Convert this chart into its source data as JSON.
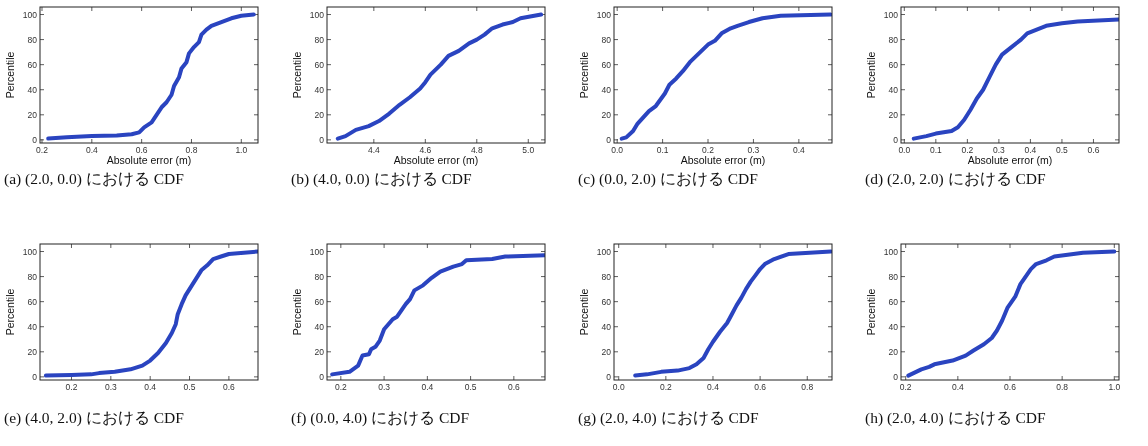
{
  "chart_data": [
    {
      "type": "line",
      "title": "(a) (2.0, 0.0) における CDF",
      "xlabel": "Absolute error (m)",
      "ylabel": "Percentile",
      "xlim": [
        0.192,
        1.067
      ],
      "ylim": [
        -2.5,
        106
      ],
      "xticks": [
        0.2,
        0.4,
        0.6,
        0.8,
        {
          "value": 1,
          "label": "1.0"
        }
      ],
      "yticks": [
        0,
        20,
        40,
        60,
        80,
        100
      ],
      "series": [
        {
          "color": "#2a44c0",
          "x": [
            0.225,
            0.3,
            0.4,
            0.5,
            0.56,
            0.59,
            0.61,
            0.64,
            0.66,
            0.68,
            0.7,
            0.72,
            0.73,
            0.75,
            0.76,
            0.78,
            0.79,
            0.81,
            0.83,
            0.84,
            0.86,
            0.88,
            0.92,
            0.96,
            1.0,
            1.05
          ],
          "values": [
            1,
            2,
            3,
            3.5,
            4.5,
            6,
            10,
            14,
            20,
            26,
            30,
            36,
            43,
            50,
            57,
            62,
            69,
            74,
            78,
            84,
            88,
            91,
            94,
            97,
            99,
            100
          ]
        }
      ]
    },
    {
      "type": "line",
      "title": "(b) (4.0, 0.0) における CDF",
      "xlabel": "Absolute error (m)",
      "ylabel": "Percentile",
      "xlim": [
        4.218,
        5.065
      ],
      "ylim": [
        -2.5,
        106
      ],
      "xticks": [
        4.4,
        4.6,
        4.8,
        {
          "value": 5,
          "label": "5.0"
        }
      ],
      "yticks": [
        0,
        20,
        40,
        60,
        80,
        100
      ],
      "series": [
        {
          "color": "#2a44c0",
          "x": [
            4.26,
            4.29,
            4.33,
            4.38,
            4.42,
            4.46,
            4.5,
            4.54,
            4.58,
            4.6,
            4.62,
            4.66,
            4.69,
            4.73,
            4.77,
            4.8,
            4.83,
            4.86,
            4.9,
            4.94,
            4.97,
            5.05
          ],
          "values": [
            1,
            3,
            8,
            11,
            15,
            21,
            28,
            34,
            41,
            46,
            52,
            60,
            67,
            71,
            77,
            80,
            84,
            89,
            92,
            94,
            97,
            100
          ]
        }
      ]
    },
    {
      "type": "line",
      "title": "(c) (0.0, 2.0) における CDF",
      "xlabel": "Absolute error (m)",
      "ylabel": "Percentile",
      "xlim": [
        -0.007,
        0.473
      ],
      "ylim": [
        -2.5,
        106
      ],
      "xticks": [
        {
          "value": 0,
          "label": "0.0"
        },
        0.1,
        0.2,
        0.3,
        0.4
      ],
      "yticks": [
        0,
        20,
        40,
        60,
        80,
        100
      ],
      "series": [
        {
          "color": "#2a44c0",
          "x": [
            0.01,
            0.02,
            0.035,
            0.045,
            0.06,
            0.07,
            0.085,
            0.095,
            0.105,
            0.115,
            0.13,
            0.145,
            0.16,
            0.18,
            0.2,
            0.215,
            0.23,
            0.25,
            0.265,
            0.29,
            0.32,
            0.36,
            0.47
          ],
          "values": [
            1,
            2,
            7,
            13,
            19,
            23,
            27,
            32,
            37,
            44,
            49,
            55,
            62,
            69,
            76,
            79,
            85,
            89,
            91,
            94,
            97,
            99,
            100
          ]
        }
      ]
    },
    {
      "type": "line",
      "title": "(d) (2.0, 2.0) における CDF",
      "xlabel": "Absolute error (m)",
      "ylabel": "Percentile",
      "xlim": [
        -0.0105,
        0.681
      ],
      "ylim": [
        -2.5,
        106
      ],
      "xticks": [
        {
          "value": 0,
          "label": "0.0"
        },
        0.1,
        0.2,
        0.3,
        0.4,
        0.5,
        0.6
      ],
      "yticks": [
        0,
        20,
        40,
        60,
        80,
        100
      ],
      "series": [
        {
          "color": "#2a44c0",
          "x": [
            0.03,
            0.07,
            0.1,
            0.15,
            0.17,
            0.19,
            0.21,
            0.23,
            0.25,
            0.27,
            0.29,
            0.31,
            0.34,
            0.37,
            0.39,
            0.42,
            0.45,
            0.5,
            0.55,
            0.68
          ],
          "values": [
            1,
            3,
            5,
            7,
            10,
            16,
            24,
            33,
            40,
            50,
            60,
            68,
            74,
            80,
            85,
            88,
            91,
            93,
            94.5,
            96
          ]
        }
      ]
    },
    {
      "type": "line",
      "title": "(e) (4.0, 2.0) における CDF",
      "ylabel": "Percentile",
      "xlim": [
        0.12,
        0.674
      ],
      "ylim": [
        -2.5,
        106
      ],
      "xticks": [
        0.2,
        0.3,
        0.4,
        0.5,
        0.6
      ],
      "yticks": [
        0,
        20,
        40,
        60,
        80,
        100
      ],
      "series": [
        {
          "color": "#2a44c0",
          "x": [
            0.135,
            0.2,
            0.25,
            0.27,
            0.31,
            0.35,
            0.38,
            0.4,
            0.42,
            0.44,
            0.455,
            0.465,
            0.47,
            0.48,
            0.49,
            0.51,
            0.53,
            0.545,
            0.56,
            0.58,
            0.6,
            0.674
          ],
          "values": [
            1,
            1.5,
            2,
            3,
            4,
            6,
            9,
            13,
            19,
            27,
            35,
            42,
            50,
            58,
            65,
            75,
            85,
            89,
            94,
            96,
            98,
            100
          ]
        }
      ]
    },
    {
      "type": "line",
      "title": "(f) (0.0, 4.0) における CDF",
      "ylabel": "Percentile",
      "xlim": [
        0.168,
        0.672
      ],
      "ylim": [
        -2.5,
        106
      ],
      "xticks": [
        0.2,
        0.3,
        0.4,
        0.5,
        0.6
      ],
      "yticks": [
        0,
        20,
        40,
        60,
        80,
        100
      ],
      "series": [
        {
          "color": "#2a44c0",
          "x": [
            0.18,
            0.22,
            0.24,
            0.25,
            0.265,
            0.27,
            0.28,
            0.29,
            0.3,
            0.31,
            0.32,
            0.33,
            0.34,
            0.35,
            0.36,
            0.37,
            0.39,
            0.41,
            0.43,
            0.46,
            0.48,
            0.49,
            0.55,
            0.58,
            0.672
          ],
          "values": [
            2,
            4,
            9,
            17,
            18,
            22,
            24,
            29,
            38,
            42,
            46,
            48,
            53,
            58,
            62,
            69,
            73,
            79,
            84,
            88,
            90,
            93,
            94,
            96,
            97
          ]
        }
      ]
    },
    {
      "type": "line",
      "title": "(g) (2.0, 4.0) における CDF",
      "ylabel": "Percentile",
      "xlim": [
        -0.02,
        0.905
      ],
      "ylim": [
        -2.5,
        106
      ],
      "xticks": [
        {
          "value": 0,
          "label": "0.0"
        },
        0.2,
        0.4,
        0.6,
        0.8
      ],
      "yticks": [
        0,
        20,
        40,
        60,
        80,
        100
      ],
      "series": [
        {
          "color": "#2a44c0",
          "x": [
            0.07,
            0.12,
            0.18,
            0.25,
            0.3,
            0.33,
            0.36,
            0.38,
            0.4,
            0.43,
            0.46,
            0.48,
            0.5,
            0.52,
            0.54,
            0.56,
            0.58,
            0.6,
            0.62,
            0.66,
            0.72,
            0.9
          ],
          "values": [
            1,
            2,
            4,
            5,
            7,
            10,
            15,
            22,
            28,
            36,
            43,
            50,
            57,
            63,
            70,
            76,
            81,
            86,
            90,
            94,
            98,
            100
          ]
        }
      ]
    },
    {
      "type": "line",
      "title": "(h) (2.0, 4.0) における CDF",
      "ylabel": "Percentile",
      "xlim": [
        0.182,
        1.018
      ],
      "ylim": [
        -2.5,
        106
      ],
      "xticks": [
        0.2,
        0.4,
        0.6,
        0.8,
        {
          "value": 1,
          "label": "1.0"
        }
      ],
      "yticks": [
        0,
        20,
        40,
        60,
        80,
        100
      ],
      "series": [
        {
          "color": "#2a44c0",
          "x": [
            0.21,
            0.23,
            0.26,
            0.29,
            0.31,
            0.38,
            0.43,
            0.46,
            0.5,
            0.53,
            0.55,
            0.57,
            0.59,
            0.62,
            0.64,
            0.66,
            0.68,
            0.7,
            0.74,
            0.77,
            0.88,
            1.0
          ],
          "values": [
            1,
            3,
            6,
            8,
            10,
            13,
            17,
            21,
            26,
            31,
            37,
            45,
            55,
            64,
            74,
            80,
            86,
            90,
            93,
            96,
            99,
            100
          ]
        }
      ]
    }
  ]
}
